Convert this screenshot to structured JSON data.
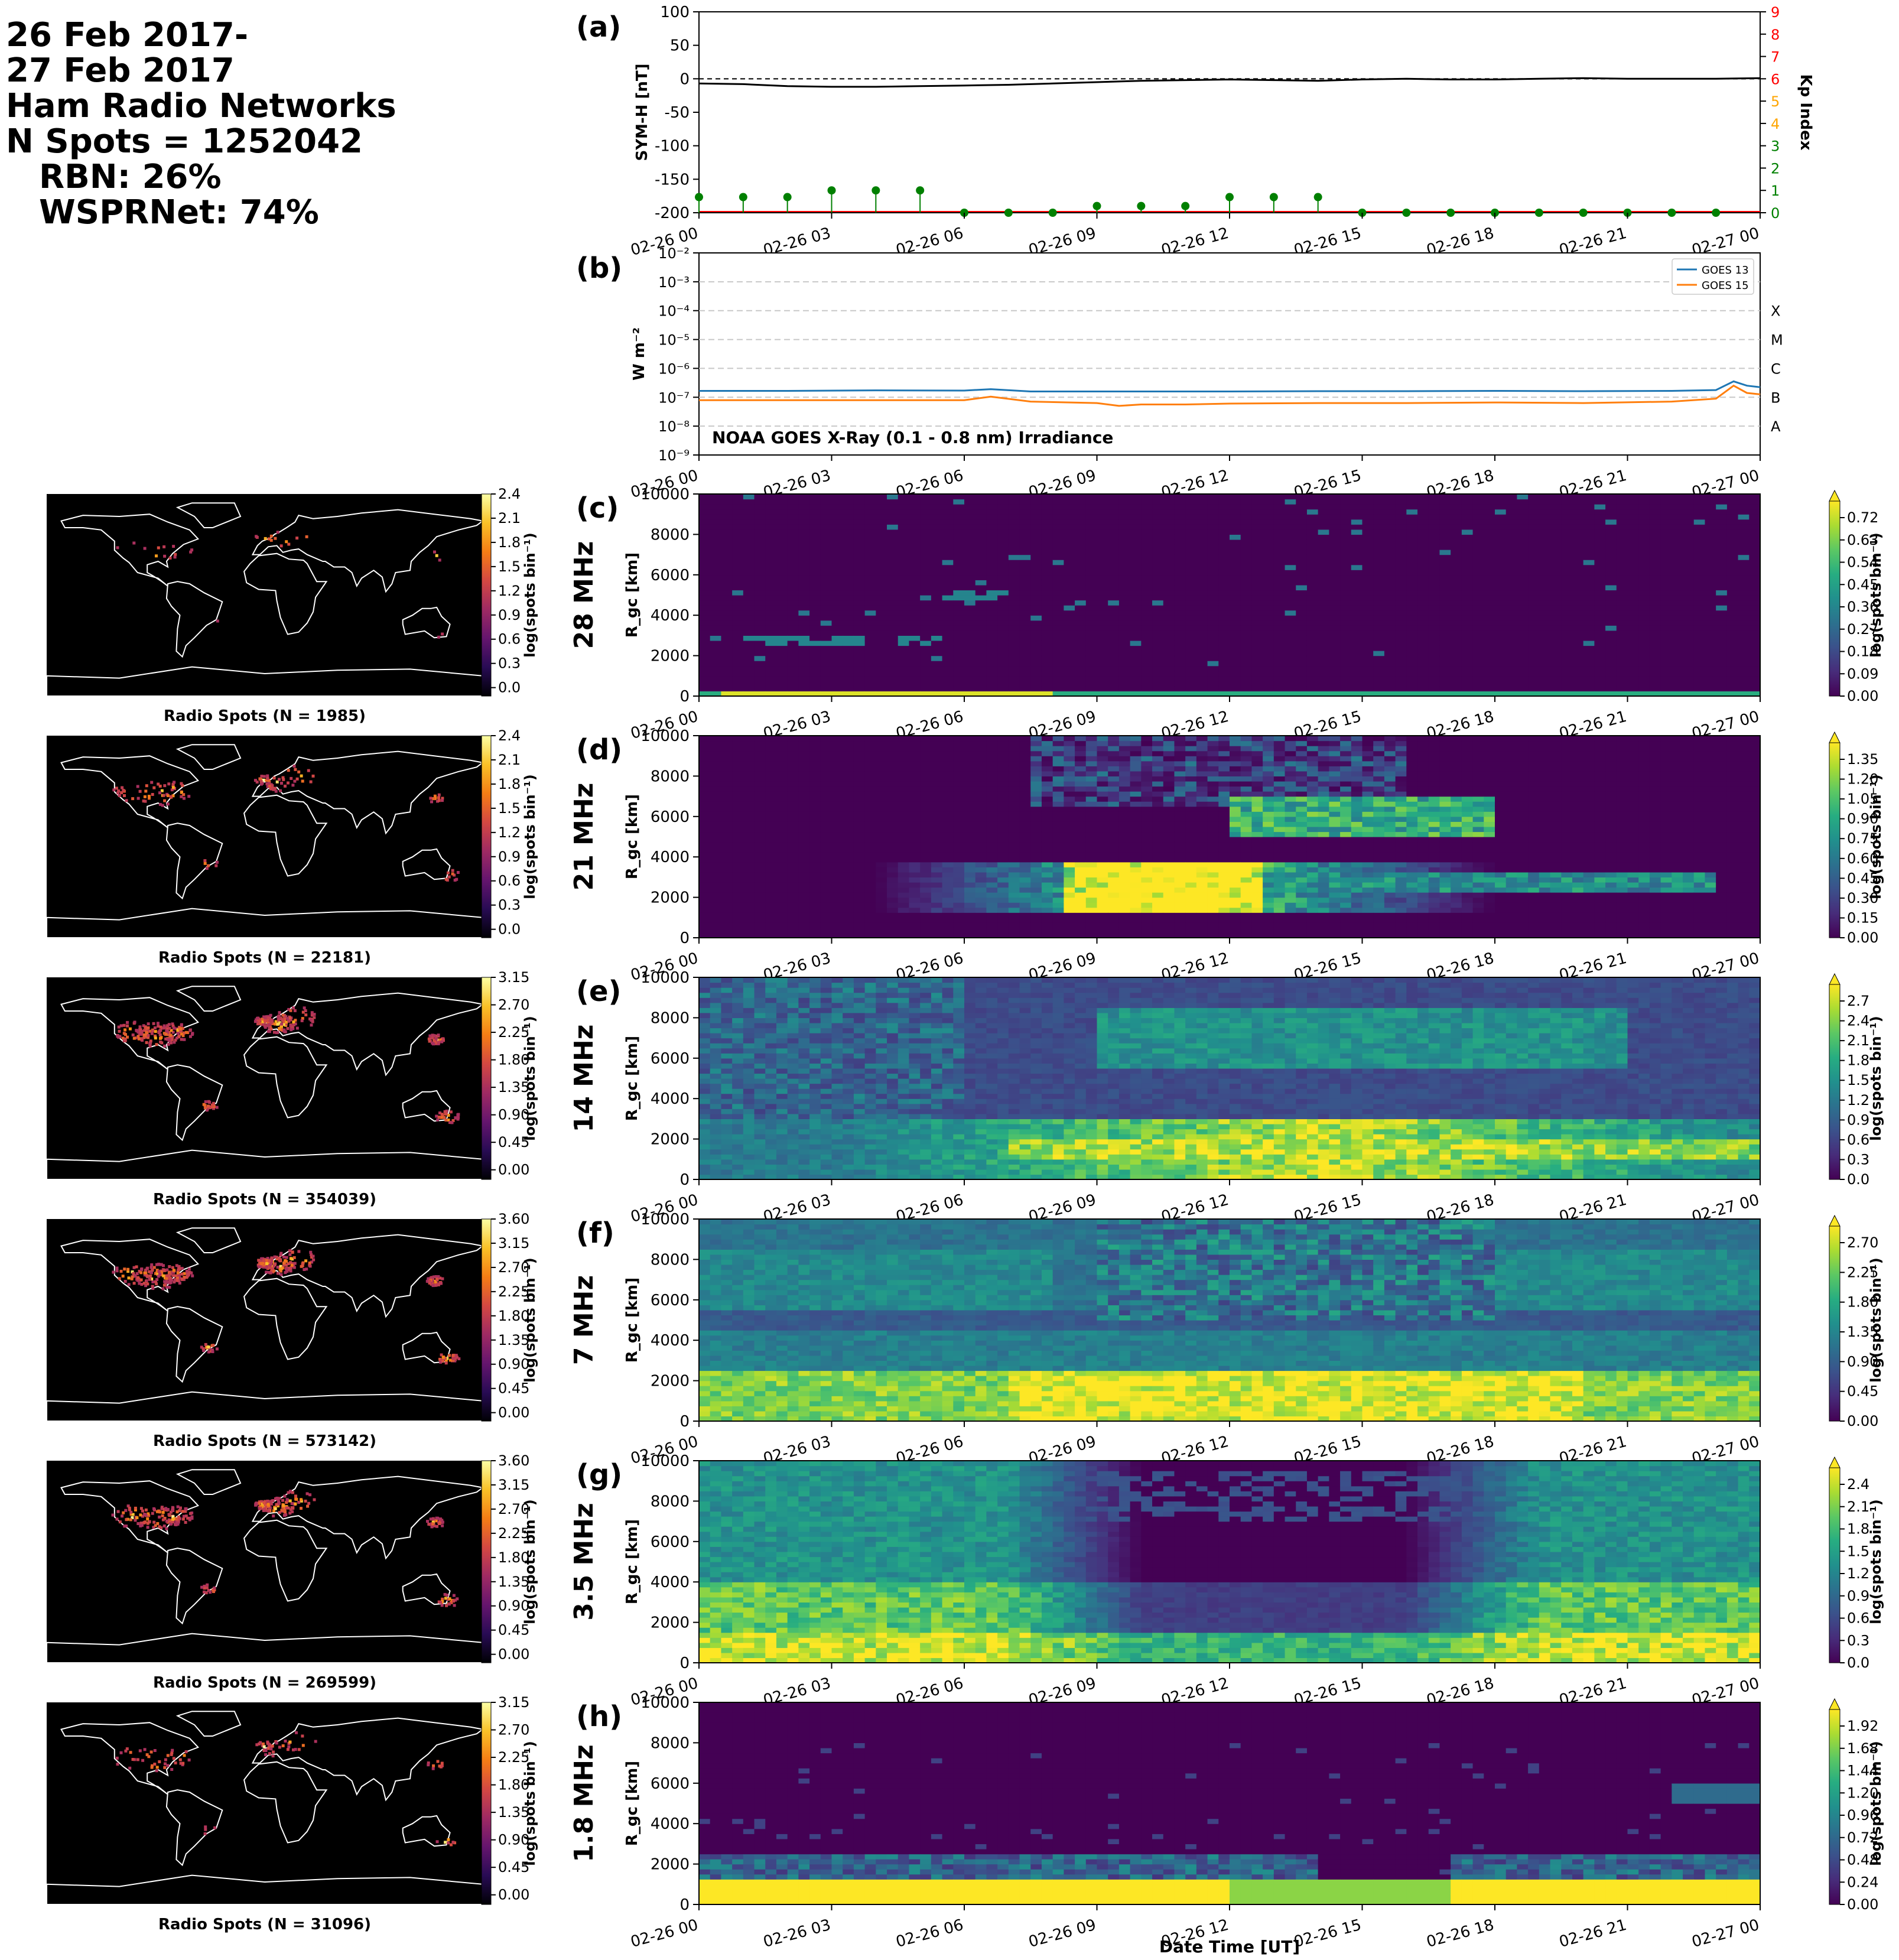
{
  "header": {
    "lines": [
      "26 Feb 2017-",
      "27 Feb 2017",
      "Ham Radio Networks",
      "N Spots = 1252042"
    ],
    "sub_lines": [
      "RBN: 26%",
      "WSPRNet: 74%"
    ]
  },
  "colors": {
    "symh": "#000000",
    "kp_low": "#008000",
    "kp_mid": "#ffa500",
    "kp_high": "#ff0000",
    "goes13": "#1f77b4",
    "goes15": "#ff7f0e",
    "map_bg": "#000000",
    "coast": "#ffffff"
  },
  "time_ticks": [
    "02-26 00",
    "02-26 03",
    "02-26 06",
    "02-26 09",
    "02-26 12",
    "02-26 15",
    "02-26 18",
    "02-26 21",
    "02-27 00"
  ],
  "chart_data": [
    {
      "id": "a",
      "panel_label": "(a)",
      "type": "line",
      "ylabel": "SYM-H [nT]",
      "ylim": [
        -200,
        100
      ],
      "yticks": [
        100,
        50,
        0,
        -50,
        -100,
        -150,
        -200
      ],
      "y2label": "Kp Index",
      "y2lim": [
        0,
        9
      ],
      "y2ticks": [
        0,
        1,
        2,
        3,
        4,
        5,
        6,
        7,
        8,
        9
      ],
      "series": [
        {
          "type": "line",
          "hours": [
            0,
            1,
            2,
            3,
            4,
            5,
            6,
            7,
            8,
            9,
            10,
            11,
            12,
            13,
            14,
            15,
            16,
            17,
            18,
            19,
            20,
            21,
            22,
            23,
            24
          ],
          "values": [
            -7,
            -8,
            -11,
            -12,
            -12,
            -11,
            -10,
            -9,
            -7,
            -5,
            -3,
            -2,
            -1,
            -2,
            -3,
            -1,
            0,
            -1,
            -1,
            0,
            1,
            0,
            0,
            0,
            1
          ]
        },
        {
          "type": "stem",
          "hours": [
            0,
            1,
            2,
            3,
            4,
            5,
            6,
            7,
            8,
            9,
            10,
            11,
            12,
            13,
            14,
            15,
            16,
            17,
            18,
            19,
            20,
            21,
            22,
            23
          ],
          "values": [
            0.7,
            0.7,
            0.7,
            1.0,
            1.0,
            1.0,
            0,
            0,
            0,
            0.3,
            0.3,
            0.3,
            0.7,
            0.7,
            0.7,
            0,
            0,
            0,
            0,
            0,
            0,
            0,
            0,
            0
          ]
        }
      ]
    },
    {
      "id": "b",
      "panel_label": "(b)",
      "type": "line",
      "title": "NOAA GOES X-Ray (0.1 - 0.8 nm) Irradiance",
      "ylabel": "W m⁻²",
      "ylim_exp": [
        -9,
        -2
      ],
      "yticks": [
        "10⁻⁹",
        "10⁻⁸",
        "10⁻⁷",
        "10⁻⁶",
        "10⁻⁵",
        "10⁻⁴",
        "10⁻³",
        "10⁻²"
      ],
      "flare_classes": [
        "A",
        "B",
        "C",
        "M",
        "X"
      ],
      "legend": [
        "GOES 13",
        "GOES 15"
      ],
      "legend_loc": "upper right",
      "series": [
        {
          "name": "GOES 13",
          "hours": [
            0,
            2,
            4,
            6,
            6.6,
            7.5,
            9,
            10,
            12,
            14,
            16,
            18,
            20,
            22,
            23,
            23.4,
            23.7,
            24
          ],
          "values_exp": [
            -6.78,
            -6.78,
            -6.76,
            -6.77,
            -6.72,
            -6.8,
            -6.8,
            -6.8,
            -6.8,
            -6.79,
            -6.79,
            -6.78,
            -6.79,
            -6.78,
            -6.75,
            -6.45,
            -6.6,
            -6.65
          ]
        },
        {
          "name": "GOES 15",
          "hours": [
            0,
            2,
            4,
            6,
            6.6,
            7.5,
            9,
            9.5,
            10,
            11,
            12,
            14,
            16,
            18,
            20,
            22,
            23,
            23.4,
            23.7,
            24
          ],
          "values_exp": [
            -7.1,
            -7.1,
            -7.1,
            -7.1,
            -6.98,
            -7.15,
            -7.2,
            -7.3,
            -7.25,
            -7.25,
            -7.22,
            -7.2,
            -7.2,
            -7.18,
            -7.2,
            -7.15,
            -7.05,
            -6.6,
            -6.85,
            -6.9
          ]
        }
      ]
    }
  ],
  "bands": [
    {
      "id": "c",
      "panel_label": "(c)",
      "freq": "28 MHz",
      "map_caption": "Radio Spots (N = 1985)",
      "map_ticks": [
        "2.4",
        "2.1",
        "1.8",
        "1.5",
        "1.2",
        "0.9",
        "0.6",
        "0.3",
        "0.0"
      ],
      "heat_ticks": [
        "0.72",
        "0.63",
        "0.54",
        "0.45",
        "0.36",
        "0.27",
        "0.18",
        "0.09",
        "0.00"
      ]
    },
    {
      "id": "d",
      "panel_label": "(d)",
      "freq": "21 MHz",
      "map_caption": "Radio Spots (N = 22181)",
      "map_ticks": [
        "2.4",
        "2.1",
        "1.8",
        "1.5",
        "1.2",
        "0.9",
        "0.6",
        "0.3",
        "0.0"
      ],
      "heat_ticks": [
        "1.35",
        "1.20",
        "1.05",
        "0.90",
        "0.75",
        "0.60",
        "0.45",
        "0.30",
        "0.15",
        "0.00"
      ]
    },
    {
      "id": "e",
      "panel_label": "(e)",
      "freq": "14 MHz",
      "map_caption": "Radio Spots (N = 354039)",
      "map_ticks": [
        "3.15",
        "2.70",
        "2.25",
        "1.80",
        "1.35",
        "0.90",
        "0.45",
        "0.00"
      ],
      "heat_ticks": [
        "2.7",
        "2.4",
        "2.1",
        "1.8",
        "1.5",
        "1.2",
        "0.9",
        "0.6",
        "0.3",
        "0.0"
      ]
    },
    {
      "id": "f",
      "panel_label": "(f)",
      "freq": "7 MHz",
      "map_caption": "Radio Spots (N = 573142)",
      "map_ticks": [
        "3.60",
        "3.15",
        "2.70",
        "2.25",
        "1.80",
        "1.35",
        "0.90",
        "0.45",
        "0.00"
      ],
      "heat_ticks": [
        "2.70",
        "2.25",
        "1.80",
        "1.35",
        "0.90",
        "0.45",
        "0.00"
      ]
    },
    {
      "id": "g",
      "panel_label": "(g)",
      "freq": "3.5 MHz",
      "map_caption": "Radio Spots (N = 269599)",
      "map_ticks": [
        "3.60",
        "3.15",
        "2.70",
        "2.25",
        "1.80",
        "1.35",
        "0.90",
        "0.45",
        "0.00"
      ],
      "heat_ticks": [
        "2.4",
        "2.1",
        "1.8",
        "1.5",
        "1.2",
        "0.9",
        "0.6",
        "0.3",
        "0.0"
      ]
    },
    {
      "id": "h",
      "panel_label": "(h)",
      "freq": "1.8 MHz",
      "map_caption": "Radio Spots (N = 31096)",
      "map_ticks": [
        "3.15",
        "2.70",
        "2.25",
        "1.80",
        "1.35",
        "0.90",
        "0.45",
        "0.00"
      ],
      "heat_ticks": [
        "1.92",
        "1.68",
        "1.44",
        "1.20",
        "0.96",
        "0.72",
        "0.48",
        "0.24",
        "0.00"
      ]
    }
  ],
  "heat_axis": {
    "ylabel": "R_gc [km]",
    "ylim": [
      0,
      10000
    ],
    "yticks": [
      "0",
      "2000",
      "4000",
      "6000",
      "8000",
      "10000"
    ],
    "cbar_label": "log(spots bin⁻¹)"
  },
  "xlabel": "Date Time [UT]",
  "right_axis_b_labels": [
    "X",
    "M",
    "C",
    "B",
    "A"
  ]
}
